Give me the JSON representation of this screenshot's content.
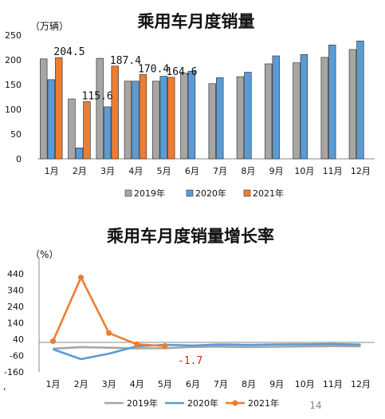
{
  "chart_data": [
    {
      "type": "bar",
      "title": "乘用车月度销量",
      "unit": "（万辆）",
      "categories": [
        "1月",
        "2月",
        "3月",
        "4月",
        "5月",
        "6月",
        "7月",
        "8月",
        "9月",
        "10月",
        "11月",
        "12月"
      ],
      "ylim": [
        0,
        250
      ],
      "yticks": [
        "0",
        "50",
        "100",
        "150",
        "200",
        "250"
      ],
      "grid": false,
      "legend_position": "bottom",
      "series": [
        {
          "name": "2019年",
          "color": "#a6a6a6",
          "values": [
            202,
            121,
            203,
            157,
            157,
            173,
            152,
            166,
            192,
            194,
            205,
            221
          ]
        },
        {
          "name": "2020年",
          "color": "#5b9bd5",
          "values": [
            160,
            22,
            105,
            157,
            167,
            177,
            164,
            175,
            208,
            211,
            230,
            238
          ]
        },
        {
          "name": "2021年",
          "color": "#ed7d31",
          "values": [
            204.5,
            115.6,
            187.4,
            170.4,
            164.6,
            null,
            null,
            null,
            null,
            null,
            null,
            null
          ]
        }
      ],
      "data_labels": [
        "204.5",
        "115.6",
        "187.4",
        "170.4",
        "164.6"
      ]
    },
    {
      "type": "line",
      "title": "乘用车月度销量增长率",
      "unit": "（%）",
      "categories": [
        "1月",
        "2月",
        "3月",
        "4月",
        "5月",
        "6月",
        "7月",
        "8月",
        "9月",
        "10月",
        "11月",
        "12月"
      ],
      "ylim": [
        -160,
        490
      ],
      "yticks": [
        "-160",
        "-60",
        "40",
        "140",
        "240",
        "340",
        "440"
      ],
      "grid": false,
      "legend_position": "bottom",
      "series": [
        {
          "name": "2019年",
          "color": "#a6a6a6",
          "values": [
            -18,
            -8,
            -12,
            -16,
            -15,
            -7,
            -5,
            -8,
            -6,
            -4,
            -2,
            -3
          ]
        },
        {
          "name": "2020年",
          "color": "#5b9bd5",
          "values": [
            -21,
            -82,
            -48,
            -3,
            6,
            2,
            8,
            5,
            8,
            9,
            11,
            7
          ]
        },
        {
          "name": "2021年",
          "color": "#ed7d31",
          "values": [
            28,
            418,
            78,
            9,
            -1.7,
            null,
            null,
            null,
            null,
            null,
            null,
            null
          ]
        }
      ],
      "annotation": "-1.7"
    }
  ],
  "footer": {
    "comma": ",",
    "page_number": "14"
  }
}
